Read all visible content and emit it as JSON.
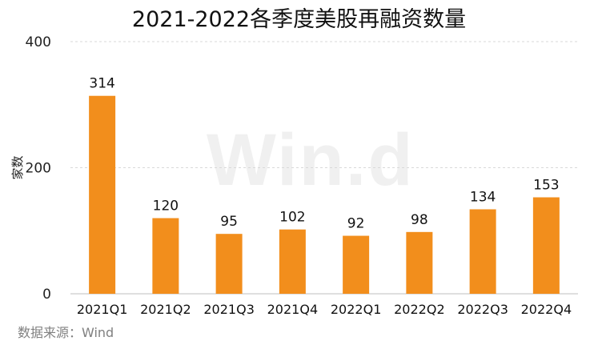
{
  "chart_data": {
    "type": "bar",
    "title": "2021-2022各季度美股再融资数量",
    "ylabel": "家数",
    "xlabel": "",
    "categories": [
      "2021Q1",
      "2021Q2",
      "2021Q3",
      "2021Q4",
      "2022Q1",
      "2022Q2",
      "2022Q3",
      "2022Q4"
    ],
    "values": [
      314,
      120,
      95,
      102,
      92,
      98,
      134,
      153
    ],
    "ylim": [
      0,
      400
    ],
    "yticks": [
      0,
      200,
      400
    ],
    "grid": true,
    "bar_color": "#f28e1c"
  },
  "source": "数据来源：Wind",
  "watermark": "Win.d"
}
